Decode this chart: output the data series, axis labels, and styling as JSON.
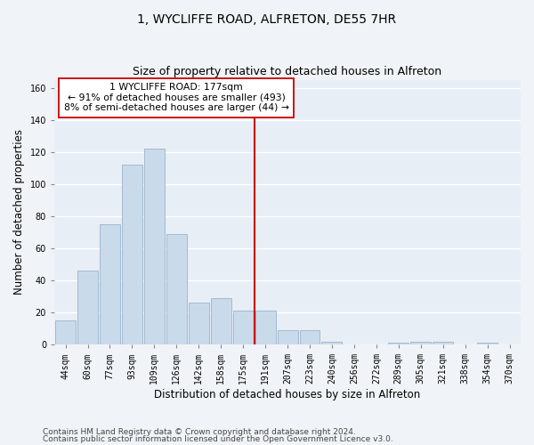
{
  "title": "1, WYCLIFFE ROAD, ALFRETON, DE55 7HR",
  "subtitle": "Size of property relative to detached houses in Alfreton",
  "xlabel": "Distribution of detached houses by size in Alfreton",
  "ylabel": "Number of detached properties",
  "footnote1": "Contains HM Land Registry data © Crown copyright and database right 2024.",
  "footnote2": "Contains public sector information licensed under the Open Government Licence v3.0.",
  "bin_labels": [
    "44sqm",
    "60sqm",
    "77sqm",
    "93sqm",
    "109sqm",
    "126sqm",
    "142sqm",
    "158sqm",
    "175sqm",
    "191sqm",
    "207sqm",
    "223sqm",
    "240sqm",
    "256sqm",
    "272sqm",
    "289sqm",
    "305sqm",
    "321sqm",
    "338sqm",
    "354sqm",
    "370sqm"
  ],
  "values": [
    15,
    46,
    75,
    112,
    122,
    69,
    26,
    29,
    21,
    21,
    9,
    9,
    2,
    0,
    0,
    1,
    2,
    2,
    0,
    1,
    0
  ],
  "bar_color": "#c9daea",
  "bar_edge_color": "#9ab4cc",
  "vline_x": 8.5,
  "vline_color": "#cc0000",
  "annotation_text": "1 WYCLIFFE ROAD: 177sqm\n← 91% of detached houses are smaller (493)\n8% of semi-detached houses are larger (44) →",
  "annotation_box_color": "#ffffff",
  "annotation_box_edge": "#cc0000",
  "ylim": [
    0,
    165
  ],
  "yticks": [
    0,
    20,
    40,
    60,
    80,
    100,
    120,
    140,
    160
  ],
  "bg_color": "#e8eef6",
  "grid_color": "#ffffff",
  "fig_bg_color": "#f0f4f8",
  "title_fontsize": 10,
  "subtitle_fontsize": 9,
  "axis_label_fontsize": 8.5,
  "tick_fontsize": 7,
  "footnote_fontsize": 6.5
}
